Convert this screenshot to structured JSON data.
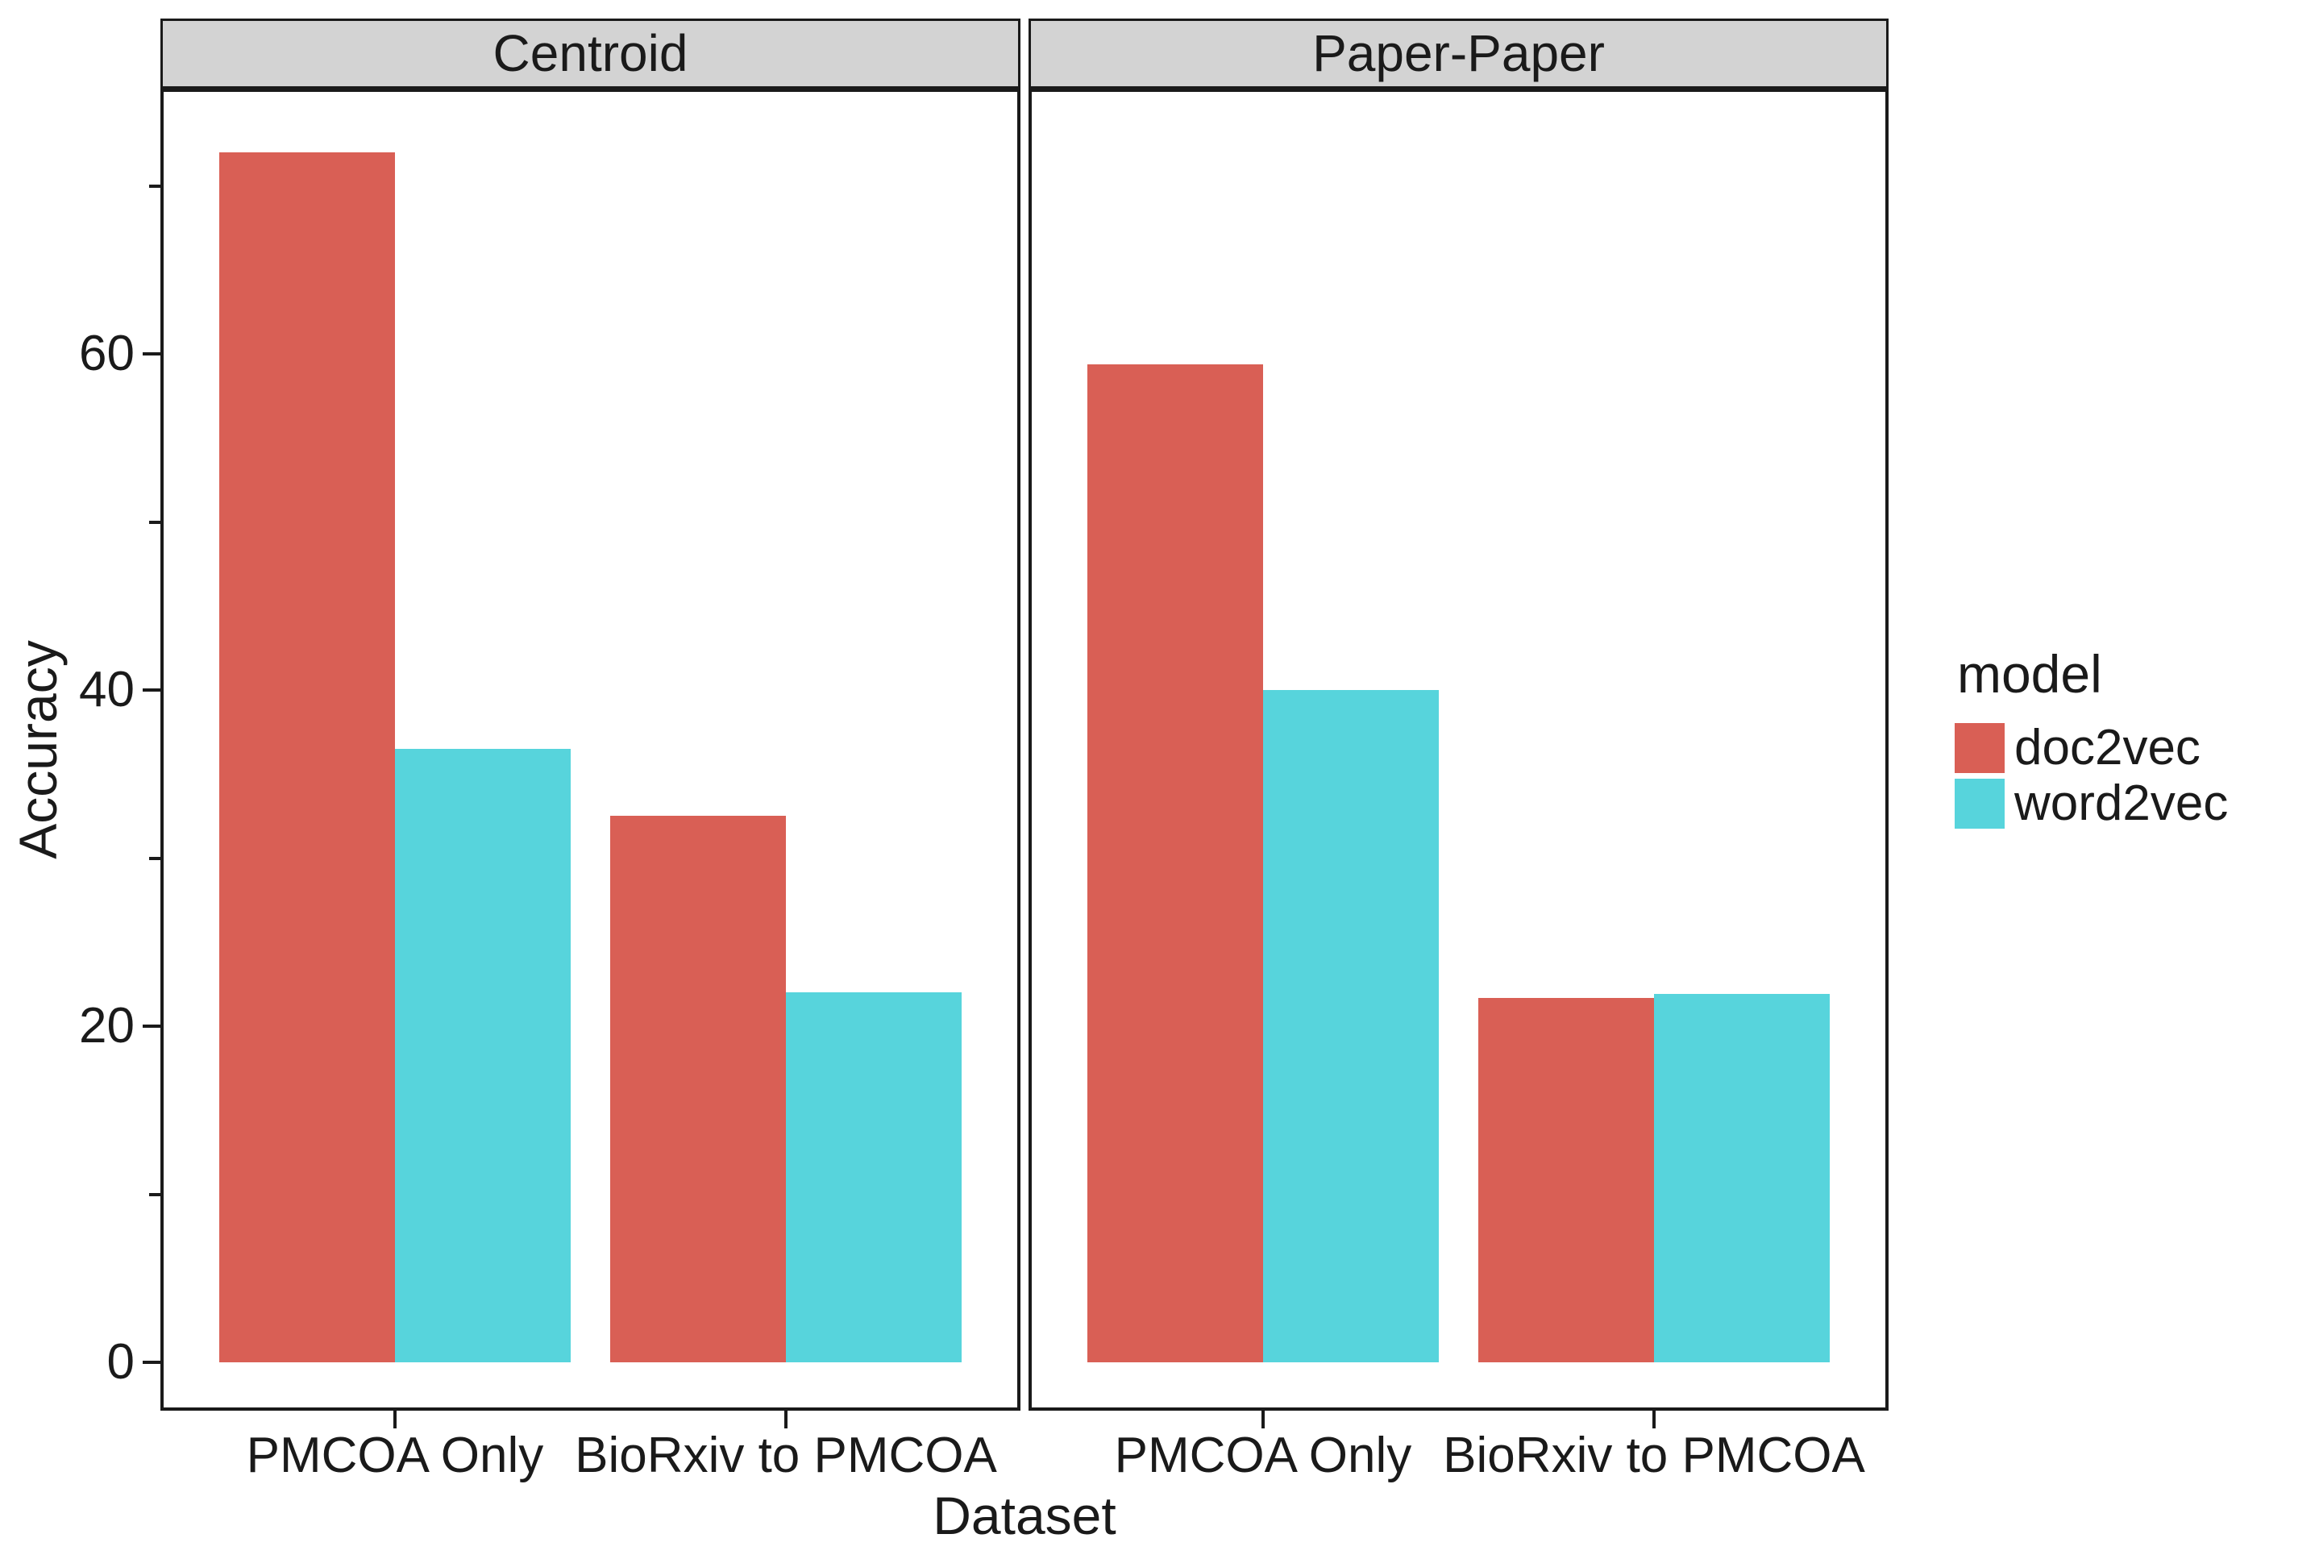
{
  "chart_data": {
    "type": "bar",
    "title": "",
    "xlabel": "Dataset",
    "ylabel": "Accuracy",
    "ylim": [
      0,
      75.8
    ],
    "yticks_major": [
      0,
      20,
      40,
      60
    ],
    "yticks_minor": [
      10,
      30,
      50,
      70
    ],
    "grid": "off",
    "legend_position": "right",
    "facets": [
      {
        "label": "Centroid",
        "categories": [
          "PMCOA Only",
          "BioRxiv to PMCOA"
        ],
        "series": [
          {
            "name": "doc2vec",
            "values": [
              72.0,
              32.5
            ]
          },
          {
            "name": "word2vec",
            "values": [
              36.5,
              22.0
            ]
          }
        ]
      },
      {
        "label": "Paper-Paper",
        "categories": [
          "PMCOA Only",
          "BioRxiv to PMCOA"
        ],
        "series": [
          {
            "name": "doc2vec",
            "values": [
              59.4,
              21.7
            ]
          },
          {
            "name": "word2vec",
            "values": [
              40.0,
              21.9
            ]
          }
        ]
      }
    ],
    "colors": {
      "doc2vec": "#D95F55",
      "word2vec": "#57D4DC"
    },
    "legend": {
      "title": "model",
      "items": [
        {
          "label": "doc2vec",
          "color": "#D95F55"
        },
        {
          "label": "word2vec",
          "color": "#57D4DC"
        }
      ]
    },
    "style": {
      "strip_background": "#D3D3D3",
      "panel_border": "#1A1A1A",
      "text_color": "#1A1A1A",
      "background": "#FFFFFF"
    }
  }
}
